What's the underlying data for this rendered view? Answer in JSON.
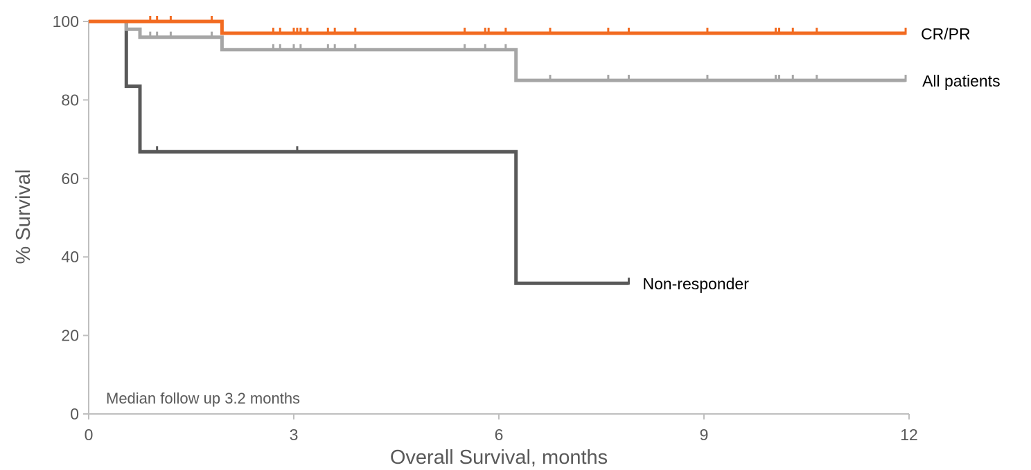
{
  "chart_data": {
    "type": "line",
    "step": true,
    "xlabel": "Overall Survival, months",
    "ylabel": "% Survival",
    "xlim": [
      0,
      12
    ],
    "ylim": [
      0,
      100
    ],
    "xticks": [
      "0",
      "3",
      "6",
      "9",
      "12"
    ],
    "yticks": [
      "0",
      "20",
      "40",
      "60",
      "80",
      "100"
    ],
    "grid": false,
    "annotation": "Median follow up 3.2 months",
    "series": [
      {
        "name": "CR/PR",
        "color": "#F26B21",
        "points": [
          [
            0,
            100
          ],
          [
            1.95,
            100
          ],
          [
            1.95,
            97
          ],
          [
            11.95,
            97
          ]
        ],
        "censored": [
          [
            0.9,
            100
          ],
          [
            1.0,
            100
          ],
          [
            1.2,
            100
          ],
          [
            1.8,
            100
          ],
          [
            2.7,
            97
          ],
          [
            2.8,
            97
          ],
          [
            3.0,
            97
          ],
          [
            3.05,
            97
          ],
          [
            3.1,
            97
          ],
          [
            3.2,
            97
          ],
          [
            3.5,
            97
          ],
          [
            3.6,
            97
          ],
          [
            3.9,
            97
          ],
          [
            5.5,
            97
          ],
          [
            5.8,
            97
          ],
          [
            5.85,
            97
          ],
          [
            6.1,
            97
          ],
          [
            6.75,
            97
          ],
          [
            7.6,
            97
          ],
          [
            7.9,
            97
          ],
          [
            9.05,
            97
          ],
          [
            10.05,
            97
          ],
          [
            10.1,
            97
          ],
          [
            10.3,
            97
          ],
          [
            10.65,
            97
          ],
          [
            11.95,
            97
          ]
        ]
      },
      {
        "name": "All patients",
        "color": "#A6A6A6",
        "points": [
          [
            0,
            100
          ],
          [
            0.55,
            100
          ],
          [
            0.55,
            98
          ],
          [
            0.75,
            98
          ],
          [
            0.75,
            96
          ],
          [
            1.95,
            96
          ],
          [
            1.95,
            92.8
          ],
          [
            6.25,
            92.8
          ],
          [
            6.25,
            85
          ],
          [
            11.95,
            85
          ]
        ],
        "censored": [
          [
            0.9,
            96
          ],
          [
            1.0,
            96
          ],
          [
            1.2,
            96
          ],
          [
            1.8,
            96
          ],
          [
            2.7,
            92.8
          ],
          [
            2.8,
            92.8
          ],
          [
            3.0,
            92.8
          ],
          [
            3.1,
            92.8
          ],
          [
            3.5,
            92.8
          ],
          [
            3.6,
            92.8
          ],
          [
            3.9,
            92.8
          ],
          [
            5.5,
            92.8
          ],
          [
            5.8,
            92.8
          ],
          [
            6.1,
            92.8
          ],
          [
            6.75,
            85
          ],
          [
            7.6,
            85
          ],
          [
            7.9,
            85
          ],
          [
            9.05,
            85
          ],
          [
            10.05,
            85
          ],
          [
            10.1,
            85
          ],
          [
            10.3,
            85
          ],
          [
            10.65,
            85
          ],
          [
            11.95,
            85
          ]
        ]
      },
      {
        "name": "Non-responder",
        "color": "#595959",
        "points": [
          [
            0,
            100
          ],
          [
            0.55,
            100
          ],
          [
            0.55,
            83.5
          ],
          [
            0.75,
            83.5
          ],
          [
            0.75,
            66.8
          ],
          [
            6.25,
            66.8
          ],
          [
            6.25,
            33.3
          ],
          [
            7.9,
            33.3
          ]
        ],
        "censored": [
          [
            0.75,
            66.8
          ],
          [
            1.0,
            66.8
          ],
          [
            3.05,
            66.8
          ],
          [
            7.9,
            33.3
          ]
        ]
      }
    ]
  }
}
